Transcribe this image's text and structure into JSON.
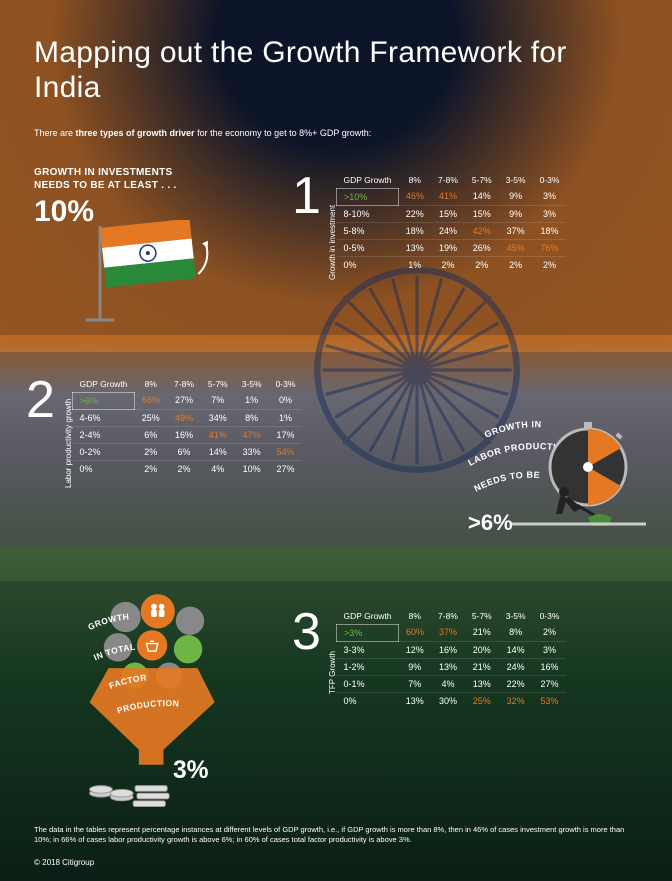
{
  "title": "Mapping out the Growth Framework for India",
  "intro_pre": "There are ",
  "intro_bold": "three types of growth driver",
  "intro_post": " for the economy to get to 8%+ GDP growth:",
  "colors": {
    "saffron": "#e57822",
    "green": "#6fb546",
    "navy": "#0e1a33",
    "chakra": "#1a2f5a"
  },
  "section1": {
    "num": "1",
    "headline_l1": "GROWTH IN INVESTMENTS",
    "headline_l2": "NEEDS TO BE AT LEAST . . .",
    "bigpct": "10%",
    "axis_label": "Growth in investment",
    "header": [
      "GDP Growth",
      "8%",
      "7-8%",
      "5-7%",
      "3-5%",
      "0-3%"
    ],
    "rows": [
      {
        "label": ">10%",
        "cells": [
          "46%",
          "41%",
          "14%",
          "9%",
          "3%"
        ],
        "label_hl": "g",
        "hl": [
          0,
          1
        ]
      },
      {
        "label": "8-10%",
        "cells": [
          "22%",
          "15%",
          "15%",
          "9%",
          "3%"
        ]
      },
      {
        "label": "5-8%",
        "cells": [
          "18%",
          "24%",
          "42%",
          "37%",
          "18%"
        ],
        "hl": [
          2
        ]
      },
      {
        "label": "0-5%",
        "cells": [
          "13%",
          "19%",
          "26%",
          "45%",
          "76%"
        ],
        "hl": [
          3,
          4
        ]
      },
      {
        "label": "0%",
        "cells": [
          "1%",
          "2%",
          "2%",
          "2%",
          "2%"
        ]
      }
    ]
  },
  "section2": {
    "num": "2",
    "headline_curve": [
      "GROWTH IN",
      "LABOR PRODUCTIVITY",
      "NEEDS TO BE"
    ],
    "bigpct": ">6%",
    "axis_label": "Labor productivity growth",
    "header": [
      "GDP Growth",
      "8%",
      "7-8%",
      "5-7%",
      "3-5%",
      "0-3%"
    ],
    "rows": [
      {
        "label": ">6%",
        "cells": [
          "66%",
          "27%",
          "7%",
          "1%",
          "0%"
        ],
        "label_hl": "g",
        "hl": [
          0
        ]
      },
      {
        "label": "4-6%",
        "cells": [
          "25%",
          "49%",
          "34%",
          "8%",
          "1%"
        ],
        "hl": [
          1
        ]
      },
      {
        "label": "2-4%",
        "cells": [
          "6%",
          "16%",
          "41%",
          "47%",
          "17%"
        ],
        "hl": [
          2,
          3
        ]
      },
      {
        "label": "0-2%",
        "cells": [
          "2%",
          "6%",
          "14%",
          "33%",
          "54%"
        ],
        "hl": [
          4
        ]
      },
      {
        "label": "0%",
        "cells": [
          "2%",
          "2%",
          "4%",
          "10%",
          "27%"
        ]
      }
    ]
  },
  "section3": {
    "num": "3",
    "funnel_words": [
      "GROWTH",
      "IN TOTAL",
      "FACTOR",
      "PRODUCTION"
    ],
    "bigpct": "3%",
    "axis_label": "TFP Growth",
    "header": [
      "GDP Growth",
      "8%",
      "7-8%",
      "5-7%",
      "3-5%",
      "0-3%"
    ],
    "rows": [
      {
        "label": ">3%",
        "cells": [
          "60%",
          "37%",
          "21%",
          "8%",
          "2%"
        ],
        "label_hl": "g",
        "hl": [
          0,
          1
        ]
      },
      {
        "label": "3-3%",
        "cells": [
          "12%",
          "16%",
          "20%",
          "14%",
          "3%"
        ]
      },
      {
        "label": "1-2%",
        "cells": [
          "9%",
          "13%",
          "21%",
          "24%",
          "16%"
        ]
      },
      {
        "label": "0-1%",
        "cells": [
          "7%",
          "4%",
          "13%",
          "22%",
          "27%"
        ]
      },
      {
        "label": "0%",
        "cells": [
          "13%",
          "30%",
          "25%",
          "32%",
          "53%"
        ],
        "hl": [
          2,
          3,
          4
        ]
      }
    ]
  },
  "footer": "The data in the tables represent percentage instances at different levels of GDP growth, i.e., if GDP growth is more than 8%, then in 46% of cases investment growth is more than 10%; in 66% of cases labor productivity growth is above 6%; in 60% of cases total factor productivity is above 3%.",
  "copyright": "© 2018 Citigroup"
}
